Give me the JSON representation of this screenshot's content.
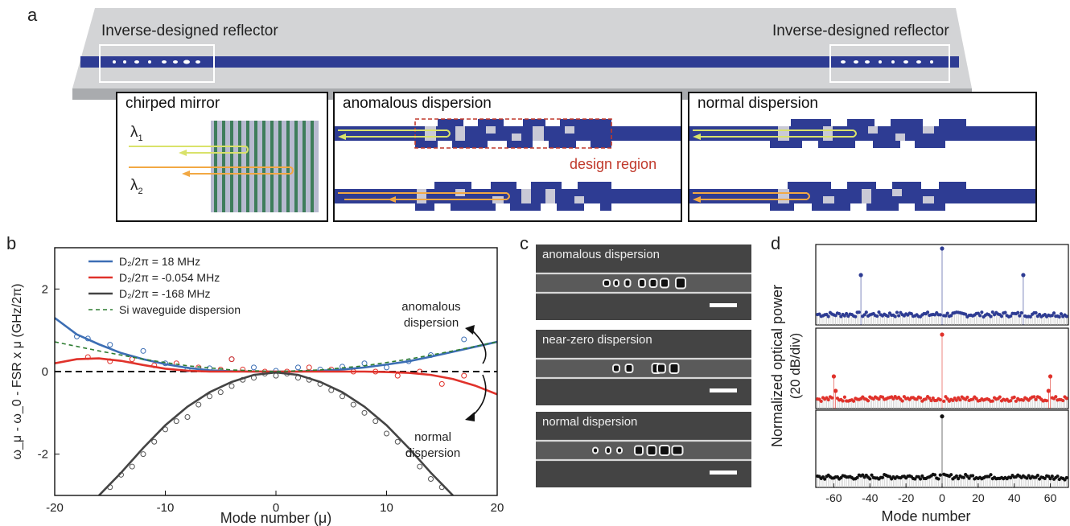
{
  "panel_a": {
    "letter": "a",
    "reflector_left": "Inverse-designed reflector",
    "reflector_right": "Inverse-designed reflector",
    "insets": [
      {
        "title": "chirped mirror",
        "lambda1": "λ",
        "lambda1_sub": "1",
        "lambda2": "λ",
        "lambda2_sub": "2"
      },
      {
        "title": "anomalous dispersion",
        "annotation": "design region"
      },
      {
        "title": "normal dispersion"
      }
    ],
    "colors": {
      "waveguide": "#2e3c93",
      "light": "#c9c9d6",
      "yellow_arrow": "#d9e26a",
      "orange_arrow": "#f2a843",
      "design_region": "#c0392b",
      "mirror_green": "#3e7d5b",
      "mirror_bg": "#b7bad0"
    }
  },
  "panel_b": {
    "letter": "b",
    "ylabel": "ω_μ - ω_0 - FSR x μ (GHz/2π)",
    "xlabel": "Mode number (μ)",
    "annotation_top": [
      "anomalous",
      "dispersion"
    ],
    "annotation_bottom": [
      "normal",
      "dispersion"
    ],
    "x_ticks": [
      "-20",
      "-10",
      "0",
      "10",
      "20"
    ],
    "y_ticks": [
      "2",
      "0",
      "-2"
    ],
    "legend": [
      {
        "label": "D₂/2π = 18 MHz",
        "color": "#3c6eb4"
      },
      {
        "label": "D₂/2π = -0.054 MHz",
        "color": "#e0322b"
      },
      {
        "label": "D₂/2π = -168 MHz",
        "color": "#444444"
      },
      {
        "label": "Si waveguide dispersion",
        "color": "#2e7d32"
      }
    ]
  },
  "panel_c": {
    "letter": "c",
    "images": [
      "anomalous dispersion",
      "near-zero dispersion",
      "normal dispersion"
    ]
  },
  "panel_d": {
    "letter": "d",
    "ylabel_top": "Normalized optical power",
    "ylabel_bottom": "(20 dB/div)",
    "xlabel": "Mode number",
    "x_ticks": [
      "-60",
      "-40",
      "-20",
      "0",
      "20",
      "40",
      "60"
    ],
    "colors": [
      "#2e3c93",
      "#e0322b",
      "#111111"
    ]
  },
  "chart_data": [
    {
      "type": "scatter",
      "title": "",
      "xlabel": "Mode number (μ)",
      "ylabel": "ω_μ - ω_0 - FSR x μ (GHz/2π)",
      "xlim": [
        -20,
        20
      ],
      "ylim": [
        -3,
        3
      ],
      "reference_line_y": 0,
      "series": [
        {
          "name": "D₂/2π = 18 MHz",
          "color": "#3c6eb4",
          "kind": "line",
          "x": [
            -20,
            -18,
            -16,
            -14,
            -12,
            -10,
            -8,
            -6,
            -4,
            -2,
            0,
            2,
            4,
            6,
            8,
            10,
            12,
            14,
            16,
            18,
            20
          ],
          "y": [
            1.3,
            0.9,
            0.66,
            0.45,
            0.3,
            0.18,
            0.09,
            0.03,
            0.01,
            0.0,
            0.0,
            0.0,
            0.02,
            0.05,
            0.1,
            0.17,
            0.25,
            0.36,
            0.48,
            0.6,
            0.72
          ]
        },
        {
          "name": "D₂/2π = -0.054 MHz",
          "color": "#e0322b",
          "kind": "line",
          "x": [
            -20,
            -18,
            -16,
            -14,
            -12,
            -10,
            -8,
            -6,
            -4,
            -2,
            0,
            2,
            4,
            6,
            8,
            10,
            12,
            14,
            16,
            18,
            20
          ],
          "y": [
            0.2,
            0.3,
            0.32,
            0.26,
            0.16,
            0.07,
            0.02,
            0.0,
            0.0,
            0.0,
            0.0,
            0.0,
            0.0,
            0.0,
            0.0,
            -0.01,
            -0.03,
            -0.08,
            -0.18,
            -0.34,
            -0.55
          ]
        },
        {
          "name": "D₂/2π = -168 MHz",
          "color": "#444444",
          "kind": "line",
          "x": [
            -16,
            -14,
            -12,
            -10,
            -8,
            -6,
            -4,
            -2,
            0,
            2,
            4,
            6,
            8,
            10,
            12,
            14,
            16
          ],
          "y": [
            -3.0,
            -2.45,
            -1.85,
            -1.3,
            -0.85,
            -0.5,
            -0.25,
            -0.08,
            -0.02,
            -0.08,
            -0.25,
            -0.5,
            -0.85,
            -1.3,
            -1.85,
            -2.45,
            -3.0
          ]
        },
        {
          "name": "Si waveguide dispersion",
          "color": "#2e7d32",
          "kind": "dashed",
          "x": [
            -20,
            -16,
            -12,
            -8,
            -4,
            0,
            4,
            8,
            12,
            16,
            20
          ],
          "y": [
            0.72,
            0.5,
            0.3,
            0.14,
            0.04,
            0.0,
            0.04,
            0.14,
            0.3,
            0.5,
            0.72
          ]
        }
      ],
      "scatter_points": [
        {
          "color": "#3c6eb4",
          "x": [
            -18,
            -17,
            -15,
            -12,
            -10,
            -8,
            -6,
            -4,
            -2,
            0,
            2,
            4,
            6,
            8,
            10,
            12,
            14,
            17
          ],
          "y": [
            0.85,
            0.8,
            0.65,
            0.5,
            0.2,
            0.05,
            0.08,
            0.3,
            0.1,
            0.02,
            0.1,
            0.05,
            0.12,
            0.2,
            0.1,
            0.25,
            0.4,
            0.78
          ]
        },
        {
          "color": "#e0322b",
          "x": [
            -17,
            -15,
            -13,
            -11,
            -9,
            -7,
            -5,
            -4,
            -3,
            -1,
            1,
            3,
            5,
            7,
            9,
            11,
            13,
            15,
            17
          ],
          "y": [
            0.35,
            0.25,
            0.3,
            0.15,
            0.2,
            0.1,
            0.05,
            0.3,
            0.05,
            0.0,
            0.0,
            0.1,
            0.05,
            0.0,
            0.0,
            -0.1,
            0.0,
            -0.3,
            -0.1
          ]
        },
        {
          "color": "#555555",
          "x": [
            -15,
            -14,
            -13,
            -12,
            -11,
            -10,
            -9,
            -8,
            -7,
            -6,
            -5,
            -4,
            -3,
            -2,
            -1,
            0,
            1,
            2,
            3,
            4,
            5,
            6,
            7,
            8,
            9,
            10,
            11,
            12,
            13,
            14,
            15
          ],
          "y": [
            -2.8,
            -2.5,
            -2.3,
            -2.0,
            -1.7,
            -1.4,
            -1.2,
            -1.1,
            -0.8,
            -0.6,
            -0.5,
            -0.35,
            -0.2,
            -0.15,
            -0.05,
            -0.1,
            -0.05,
            -0.15,
            -0.2,
            -0.3,
            -0.45,
            -0.6,
            -0.8,
            -1.0,
            -1.2,
            -1.5,
            -1.7,
            -2.0,
            -2.3,
            -2.6,
            -2.8
          ]
        }
      ]
    },
    {
      "type": "scatter",
      "title": "",
      "xlabel": "Mode number",
      "ylabel": "Normalized optical power (20 dB/div)",
      "xlim": [
        -70,
        70
      ],
      "subplots": [
        {
          "color": "#2e3c93",
          "floor": 0.12,
          "peaks": [
            {
              "x": -45,
              "y": 0.62
            },
            {
              "x": 0,
              "y": 0.95
            },
            {
              "x": 45,
              "y": 0.62
            }
          ]
        },
        {
          "color": "#e0322b",
          "floor": 0.12,
          "peaks": [
            {
              "x": -60,
              "y": 0.4
            },
            {
              "x": -59,
              "y": 0.22
            },
            {
              "x": 0,
              "y": 0.92
            },
            {
              "x": 60,
              "y": 0.4
            },
            {
              "x": 59,
              "y": 0.22
            }
          ]
        },
        {
          "color": "#111111",
          "floor": 0.12,
          "peaks": [
            {
              "x": 0,
              "y": 0.92
            }
          ]
        }
      ]
    }
  ]
}
